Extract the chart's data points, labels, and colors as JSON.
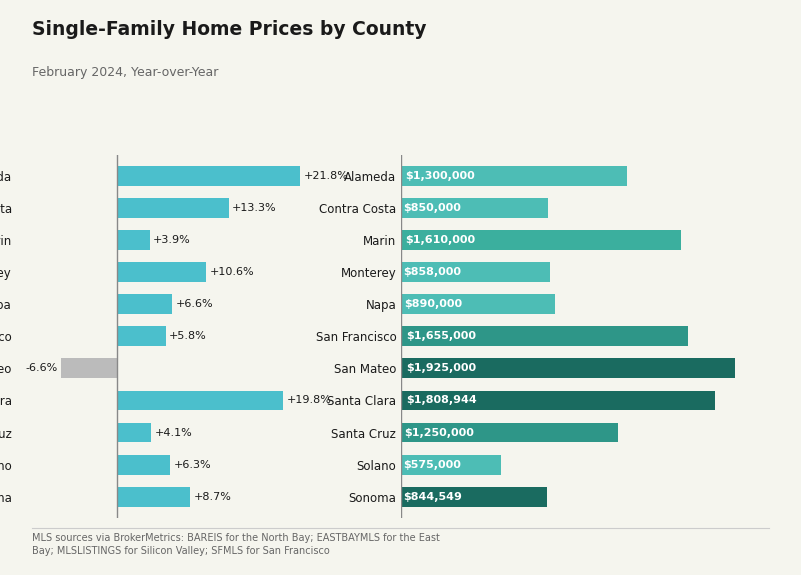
{
  "counties": [
    "Alameda",
    "Contra Costa",
    "Marin",
    "Monterey",
    "Napa",
    "San Francisco",
    "San Mateo",
    "Santa Clara",
    "Santa Cruz",
    "Solano",
    "Sonoma"
  ],
  "yoy_values": [
    21.8,
    13.3,
    3.9,
    10.6,
    6.6,
    5.8,
    -6.6,
    19.8,
    4.1,
    6.3,
    8.7
  ],
  "yoy_labels": [
    "+21.8%",
    "+13.3%",
    "+3.9%",
    "+10.6%",
    "+6.6%",
    "+5.8%",
    "-6.6%",
    "+19.8%",
    "+4.1%",
    "+6.3%",
    "+8.7%"
  ],
  "prices": [
    1300000,
    850000,
    1610000,
    858000,
    890000,
    1655000,
    1925000,
    1808944,
    1250000,
    575000,
    844549
  ],
  "price_labels": [
    "$1,300,000",
    "$850,000",
    "$1,610,000",
    "$858,000",
    "$890,000",
    "$1,655,000",
    "$1,925,000",
    "$1,808,944",
    "$1,250,000",
    "$575,000",
    "$844,549"
  ],
  "title": "Single-Family Home Prices by County",
  "subtitle": "February 2024, Year-over-Year",
  "footnote": "MLS sources via BrokerMetrics: BAREIS for the North Bay; EASTBAYMLS for the East\nBay; MLSLISTINGS for Silicon Valley; SFMLS for San Francisco",
  "positive_color": "#4BBFCC",
  "negative_color": "#BBBBBB",
  "price_colors": [
    "#4DBDB5",
    "#4DBDB5",
    "#3BAF9E",
    "#4DBDB5",
    "#4DBDB5",
    "#2E9688",
    "#1A6B60",
    "#1A6B60",
    "#2E9688",
    "#4DBDB5",
    "#1A6B60"
  ],
  "background_color": "#F5F5EE",
  "title_color": "#1a1a1a",
  "subtitle_color": "#666666",
  "axis_color": "#888888"
}
